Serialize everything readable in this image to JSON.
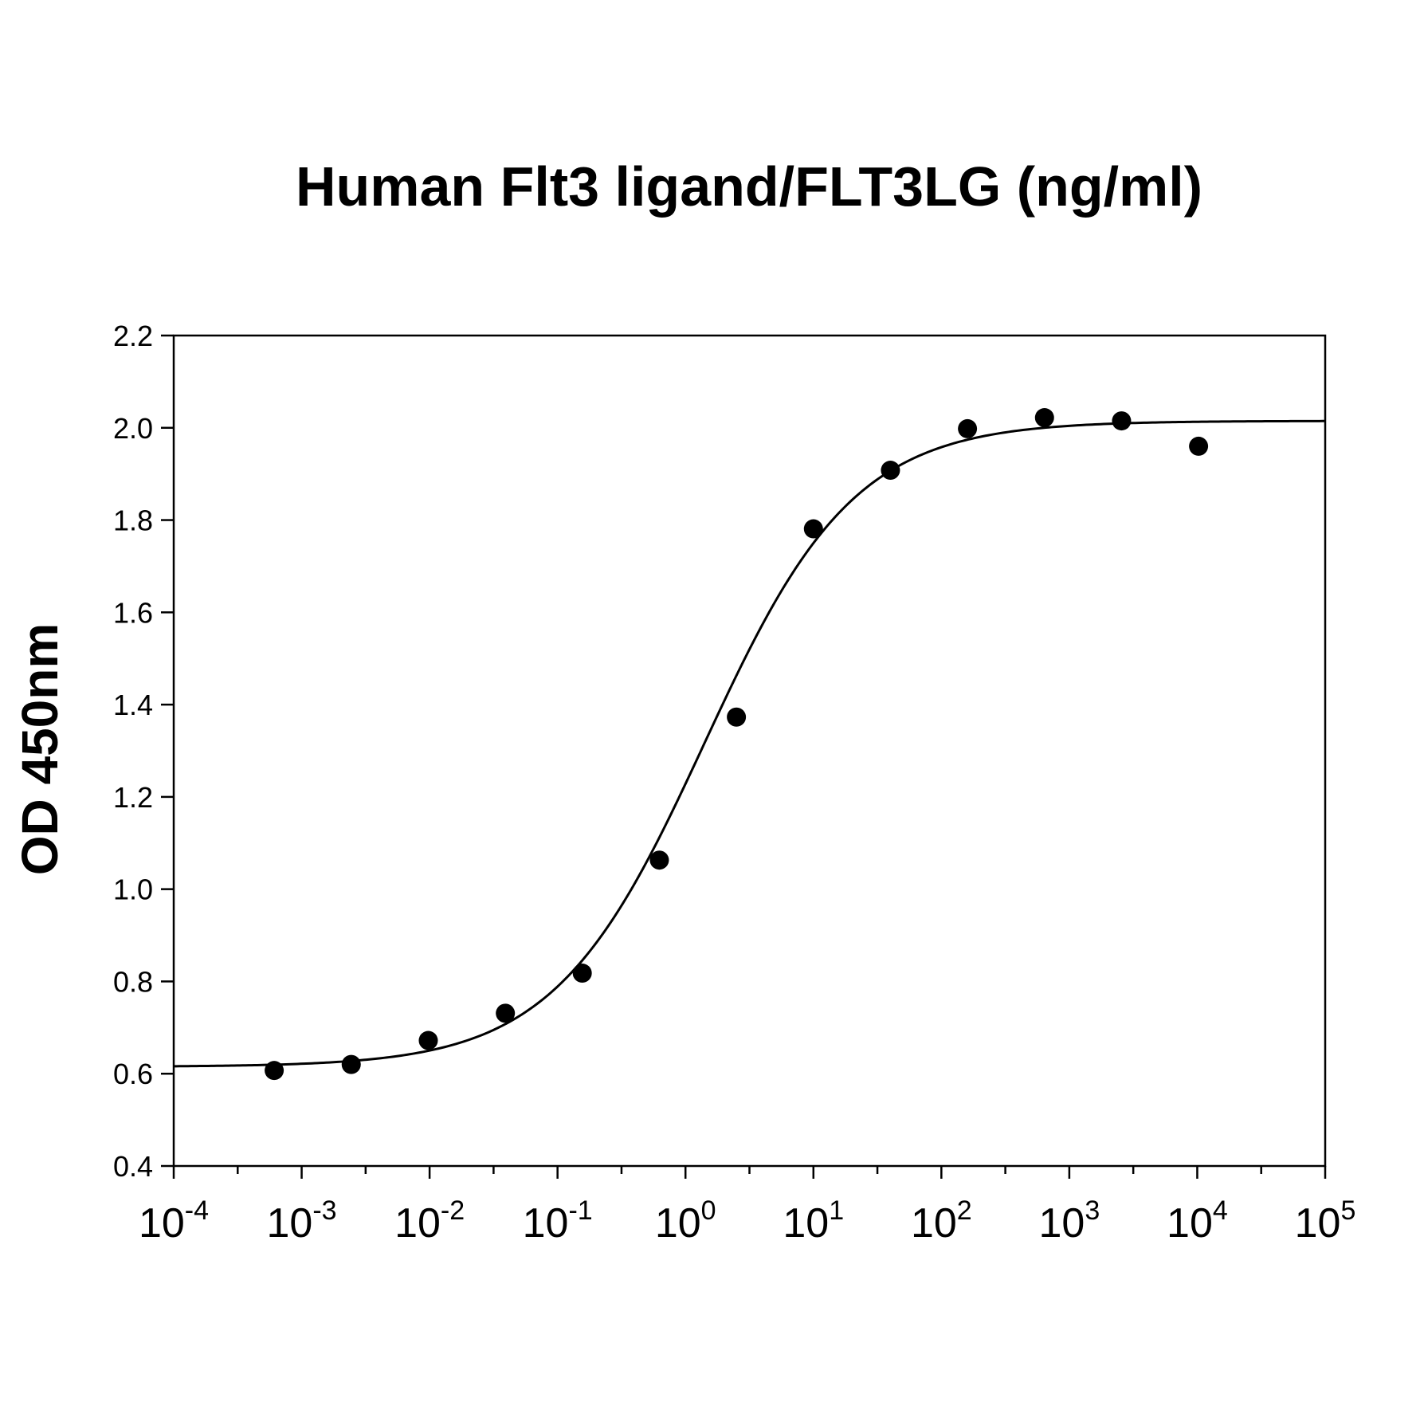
{
  "chart_data": {
    "type": "scatter",
    "title": "Human Flt3 ligand/FLT3LG (ng/ml)",
    "xlabel": "",
    "ylabel": "OD 450nm",
    "x_scale": "log",
    "xlim": [
      0.0001,
      100000
    ],
    "ylim": [
      0.4,
      2.2
    ],
    "grid": false,
    "legend": "none",
    "y_ticks": [
      "0.4",
      "0.6",
      "0.8",
      "1.0",
      "1.2",
      "1.4",
      "1.6",
      "1.8",
      "2.0",
      "2.2"
    ],
    "x_ticks": [
      {
        "base": "10",
        "exp": "-4",
        "value": 0.0001
      },
      {
        "base": "10",
        "exp": "-3",
        "value": 0.001
      },
      {
        "base": "10",
        "exp": "-2",
        "value": 0.01
      },
      {
        "base": "10",
        "exp": "-1",
        "value": 0.1
      },
      {
        "base": "10",
        "exp": "0",
        "value": 1
      },
      {
        "base": "10",
        "exp": "1",
        "value": 10
      },
      {
        "base": "10",
        "exp": "2",
        "value": 100
      },
      {
        "base": "10",
        "exp": "3",
        "value": 1000
      },
      {
        "base": "10",
        "exp": "4",
        "value": 10000
      },
      {
        "base": "10",
        "exp": "5",
        "value": 100000
      }
    ],
    "series": [
      {
        "x": [
          0.00061,
          0.00244,
          0.00977,
          0.0391,
          0.156,
          0.625,
          2.5,
          10,
          40,
          160,
          640,
          2560,
          10240
        ],
        "y": [
          0.607,
          0.62,
          0.672,
          0.731,
          0.818,
          1.063,
          1.373,
          1.781,
          1.908,
          1.998,
          2.022,
          2.015,
          1.96
        ]
      }
    ],
    "fit": {
      "type": "4PL",
      "bottom": 0.615,
      "top": 2.015,
      "ec50": 1.4,
      "hill": 0.74
    },
    "colors": {
      "points": "#000000",
      "curve": "#000000",
      "axes": "#000000"
    }
  }
}
